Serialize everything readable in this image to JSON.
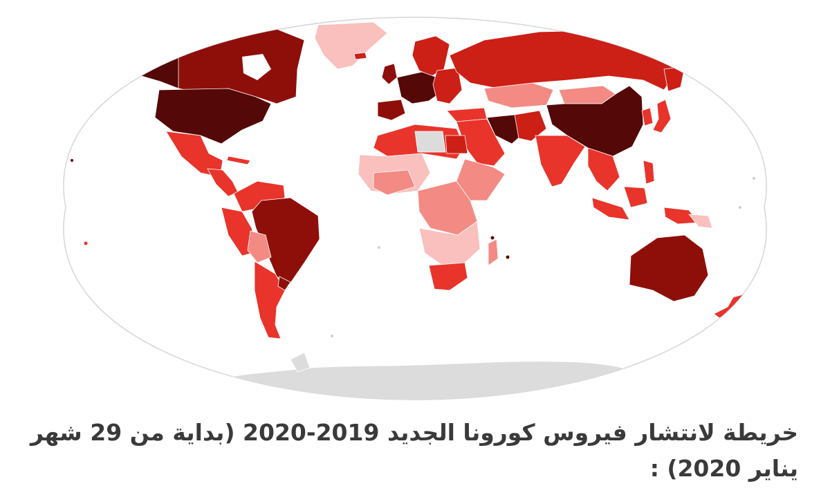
{
  "caption": "خريطة لانتشار فيروس كورونا الجديد 2019-2020 (بداية من 29 شهر يناير 2020) :",
  "colors": {
    "ocean": "#ffffff",
    "frame": "#d6d6d6",
    "no_data": "#dcdcdc",
    "level_1": "#f9c0bd",
    "level_2": "#f38a84",
    "level_3": "#e8342a",
    "level_4": "#cc1f16",
    "level_5": "#8e0f0a",
    "level_6": "#540808"
  }
}
